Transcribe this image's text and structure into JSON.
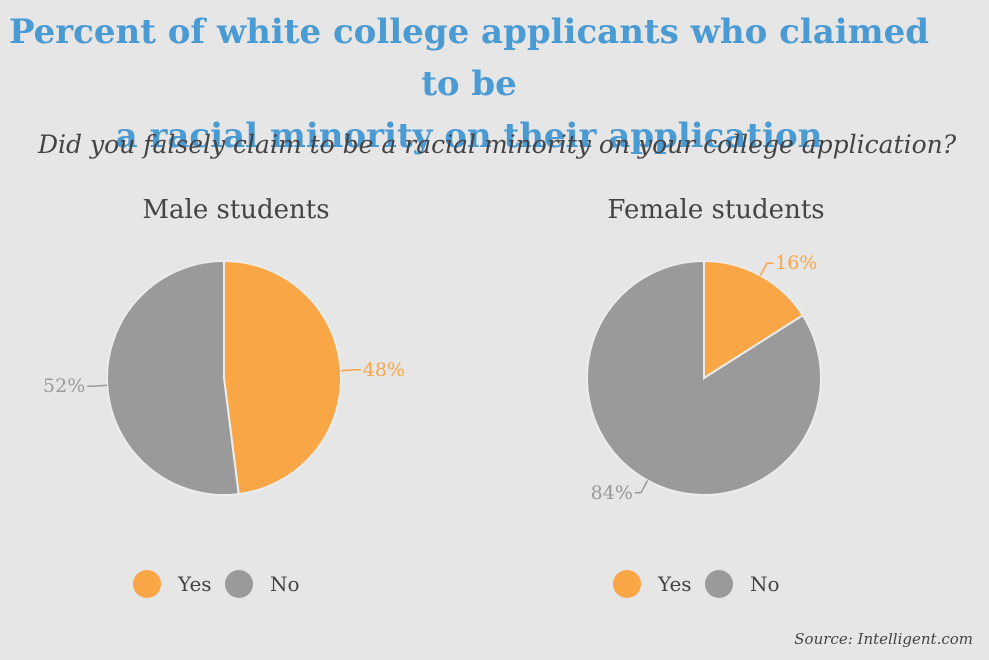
{
  "title_line1": "Percent of white college applicants who claimed to be",
  "title_line2": "a racial minority on their application",
  "subtitle": "Did you falsely claim to be a racial minority on your college application?",
  "source": "Source: Intelligent.com",
  "colors": {
    "yes": "#f9a646",
    "no": "#9a9a9a",
    "title": "#4a9ad4",
    "background": "#e6e6e6"
  },
  "chart_data": [
    {
      "type": "pie",
      "title": "Male students",
      "categories": [
        "Yes",
        "No"
      ],
      "values": [
        48,
        52
      ],
      "labels": [
        "48%",
        "52%"
      ],
      "legend": [
        "Yes",
        "No"
      ],
      "legend_position": "bottom"
    },
    {
      "type": "pie",
      "title": "Female students",
      "categories": [
        "Yes",
        "No"
      ],
      "values": [
        16,
        84
      ],
      "labels": [
        "16%",
        "84%"
      ],
      "legend": [
        "Yes",
        "No"
      ],
      "legend_position": "bottom"
    }
  ]
}
